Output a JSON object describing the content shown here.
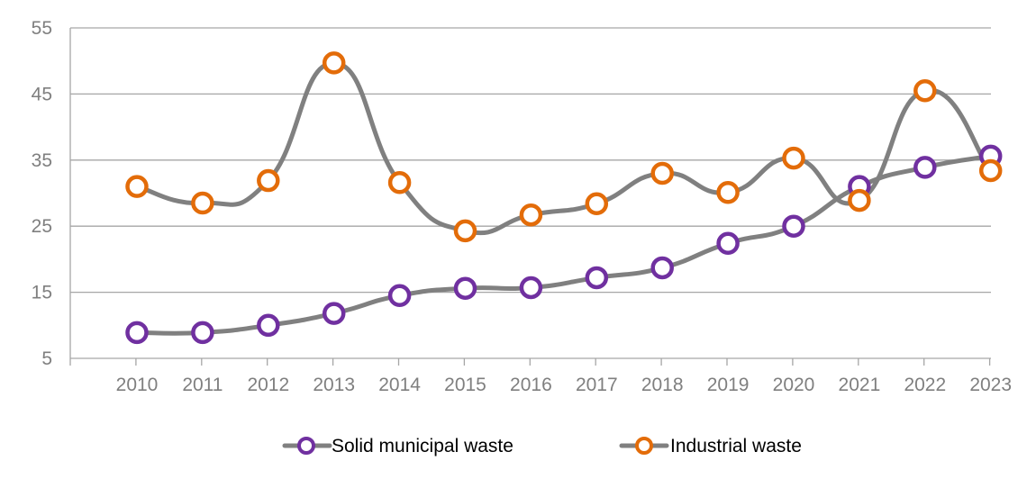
{
  "chart_data": {
    "type": "line",
    "title": "",
    "xlabel": "",
    "ylabel": "",
    "categories": [
      "2010",
      "2011",
      "2012",
      "2013",
      "2014",
      "2015",
      "2016",
      "2017",
      "2018",
      "2019",
      "2020",
      "2021",
      "2022",
      "2023"
    ],
    "ylim": [
      5,
      55
    ],
    "yticks": [
      5,
      15,
      25,
      35,
      45,
      55
    ],
    "grid": "horizontal",
    "legend_position": "bottom",
    "line_color": "#808080",
    "series": [
      {
        "name": "Solid municipal waste",
        "color": "#7030a0",
        "values": [
          8.9,
          8.9,
          10.0,
          11.8,
          14.5,
          15.6,
          15.7,
          17.2,
          18.7,
          22.4,
          25.0,
          31.0,
          33.9,
          35.6
        ]
      },
      {
        "name": "Industrial waste",
        "color": "#e36c09",
        "values": [
          31.0,
          28.5,
          31.9,
          49.7,
          31.6,
          24.3,
          26.7,
          28.4,
          33.0,
          30.1,
          35.3,
          28.9,
          45.5,
          33.4
        ]
      }
    ]
  }
}
